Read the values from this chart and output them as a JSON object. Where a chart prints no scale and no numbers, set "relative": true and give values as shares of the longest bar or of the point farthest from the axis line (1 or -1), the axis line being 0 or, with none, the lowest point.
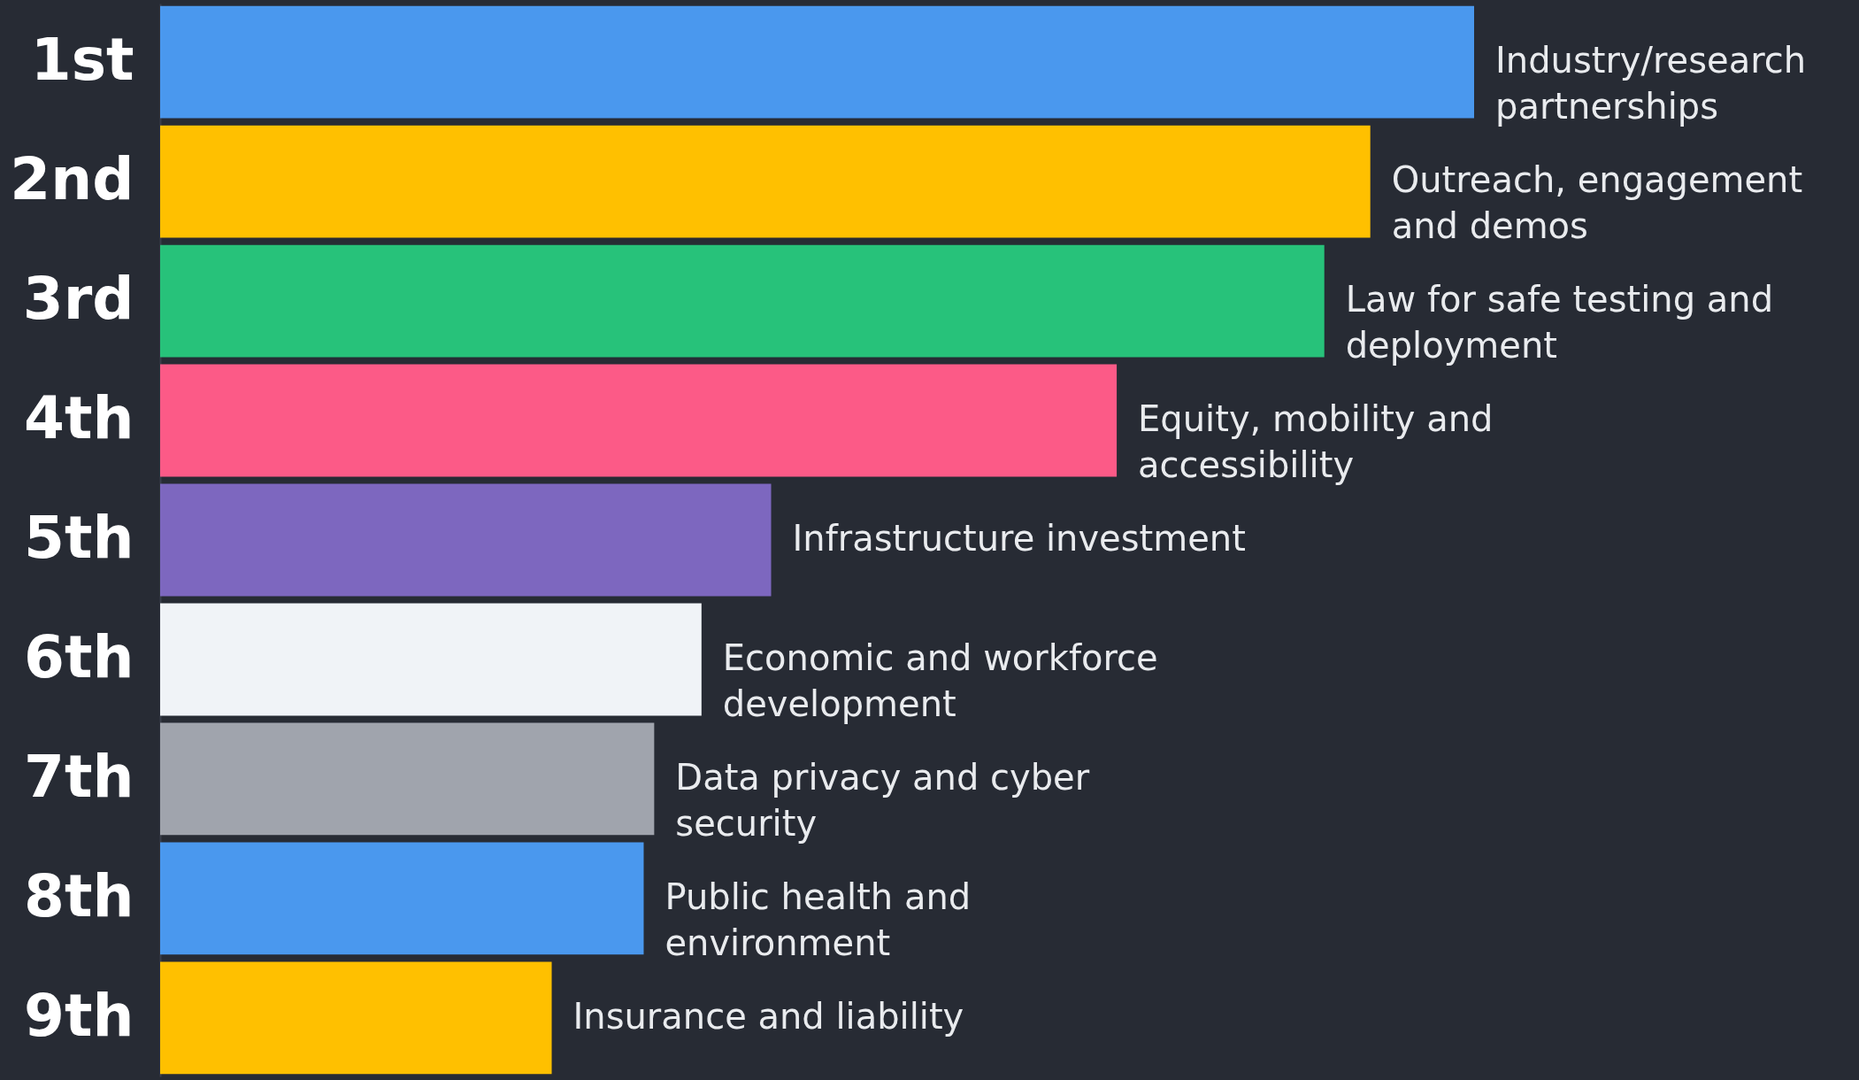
{
  "chart_data": {
    "type": "bar",
    "orientation": "horizontal",
    "relative": true,
    "categories": [
      "1st",
      "2nd",
      "3rd",
      "4th",
      "5th",
      "6th",
      "7th",
      "8th",
      "9th"
    ],
    "values": [
      1,
      0.921,
      0.886,
      0.728,
      0.465,
      0.412,
      0.376,
      0.368,
      0.298
    ],
    "colors": [
      "#4a98ee",
      "#ffc000",
      "#27c27a",
      "#fc5a87",
      "#7d67bf",
      "#f0f3f7",
      "#a0a4ad",
      "#4a98ee",
      "#ffc000"
    ],
    "annotations": [
      {
        "text": "Industry/research partnerships",
        "x": 1,
        "y": "1st"
      },
      {
        "text": "Outreach, engagement and demos",
        "x": 0.921,
        "y": "2nd"
      },
      {
        "text": "Law for safe testing and deployment",
        "x": 0.886,
        "y": "3rd"
      },
      {
        "text": "Equity, mobility and accessibility",
        "x": 0.728,
        "y": "4th"
      },
      {
        "text": "Infrastructure investment",
        "x": 0.465,
        "y": "5th"
      },
      {
        "text": "Economic and workforce development",
        "x": 0.412,
        "y": "6th"
      },
      {
        "text": "Data privacy and cyber security",
        "x": 0.376,
        "y": "7th"
      },
      {
        "text": "Public health and environment",
        "x": 0.368,
        "y": "8th"
      },
      {
        "text": "Insurance and liability",
        "x": 0.298,
        "y": "9th"
      }
    ]
  }
}
